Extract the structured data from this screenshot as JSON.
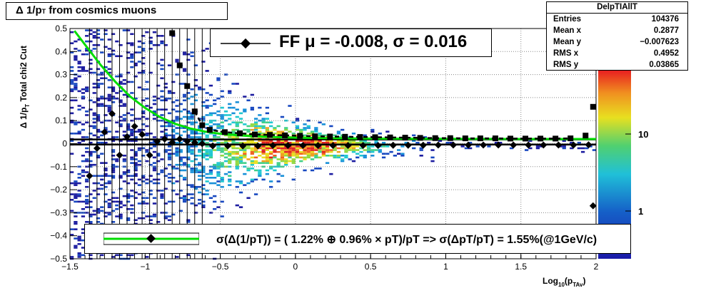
{
  "title": {
    "main": "Δ 1/p",
    "sub": "T",
    "rest": " from cosmics muons"
  },
  "stats": {
    "name": "DelpTIAllT",
    "rows": [
      {
        "label": "Entries",
        "value": "104376"
      },
      {
        "label": "Mean x",
        "value": "0.2877"
      },
      {
        "label": "Mean y",
        "value": "−0.007623"
      },
      {
        "label": "RMS x",
        "value": "0.4952"
      },
      {
        "label": "RMS y",
        "value": "0.03865"
      }
    ]
  },
  "legend_fit": {
    "text": "FF μ = -0.008, σ =   0.016"
  },
  "legend_res": {
    "text": "σ(Δ(1/pT)) = ( 1.22% ⊕  0.96% × pT)/pT => σ(ΔpT/pT) =  1.55%(@1GeV/c)"
  },
  "colors": {
    "fit_curve": "#00dd00",
    "dashed": "#000000",
    "markers": "#000000"
  },
  "chart_data": {
    "type": "heatmap",
    "title": "Δ 1/pT from cosmics muons",
    "xlabel": "Log10(pTAv)",
    "ylabel": "Δ 1/pT   Total chi2 Cut",
    "xlim": [
      -1.5,
      2.0
    ],
    "ylim": [
      -0.5,
      0.5
    ],
    "x_ticks": [
      "−1.5",
      "−1",
      "−0.5",
      "0",
      "0.5",
      "1",
      "1.5",
      "2"
    ],
    "y_ticks": [
      "−0.5",
      "−0.4",
      "−0.3",
      "−0.2",
      "−0.1",
      "0",
      "0.1",
      "0.2",
      "0.3",
      "0.4",
      "0.5"
    ],
    "z_ticks": [
      "1",
      "10"
    ],
    "z_scale": "log",
    "grid": true,
    "mean_points": {
      "x": [
        -1.37,
        -1.32,
        -1.27,
        -1.22,
        -1.17,
        -1.12,
        -1.07,
        -1.02,
        -0.97,
        -0.92,
        -0.87,
        -0.82,
        -0.77,
        -0.72,
        -0.67,
        -0.62,
        -0.55,
        -0.45,
        -0.35,
        -0.25,
        -0.15,
        -0.05,
        0.05,
        0.15,
        0.25,
        0.35,
        0.45,
        0.55,
        0.65,
        0.75,
        0.85,
        0.95,
        1.05,
        1.15,
        1.25,
        1.35,
        1.45,
        1.55,
        1.65,
        1.75,
        1.85,
        1.95,
        1.98
      ],
      "y": [
        -0.14,
        -0.02,
        0.05,
        0.13,
        -0.05,
        0.03,
        0.075,
        0.04,
        -0.05,
        0.01,
        0.02,
        0.005,
        0.02,
        0.01,
        0.005,
        0.0,
        -0.01,
        -0.01,
        -0.01,
        -0.01,
        -0.008,
        -0.008,
        -0.008,
        -0.008,
        -0.008,
        -0.008,
        -0.008,
        -0.008,
        -0.007,
        -0.007,
        -0.007,
        -0.006,
        -0.006,
        -0.006,
        -0.006,
        -0.006,
        -0.006,
        -0.006,
        -0.006,
        -0.006,
        -0.006,
        -0.005,
        -0.27
      ]
    },
    "rms_points": {
      "x": [
        -0.82,
        -0.77,
        -0.72,
        -0.67,
        -0.62,
        -0.57,
        -0.47,
        -0.37,
        -0.27,
        -0.17,
        -0.07,
        0.03,
        0.13,
        0.23,
        0.33,
        0.43,
        0.53,
        0.63,
        0.73,
        0.83,
        0.93,
        1.03,
        1.13,
        1.23,
        1.33,
        1.43,
        1.53,
        1.63,
        1.73,
        1.83,
        1.93,
        1.98
      ],
      "y": [
        0.48,
        0.34,
        0.25,
        0.14,
        0.08,
        0.06,
        0.05,
        0.045,
        0.04,
        0.038,
        0.036,
        0.034,
        0.032,
        0.031,
        0.03,
        0.029,
        0.028,
        0.027,
        0.026,
        0.025,
        0.024,
        0.024,
        0.023,
        0.023,
        0.023,
        0.022,
        0.022,
        0.022,
        0.022,
        0.023,
        0.035,
        0.16
      ]
    },
    "fit_curve": {
      "x": [
        -1.47,
        -1.4,
        -1.3,
        -1.2,
        -1.1,
        -1.0,
        -0.9,
        -0.8,
        -0.7,
        -0.6,
        -0.5,
        -0.4,
        -0.3,
        -0.2,
        -0.1,
        0.0,
        0.2,
        0.5,
        1.0,
        1.5,
        2.0
      ],
      "y": [
        0.49,
        0.43,
        0.345,
        0.27,
        0.205,
        0.155,
        0.115,
        0.086,
        0.066,
        0.052,
        0.043,
        0.037,
        0.033,
        0.03,
        0.028,
        0.026,
        0.024,
        0.022,
        0.021,
        0.02,
        0.02
      ]
    },
    "horizontal_lines": [
      0.018,
      -0.004
    ]
  }
}
